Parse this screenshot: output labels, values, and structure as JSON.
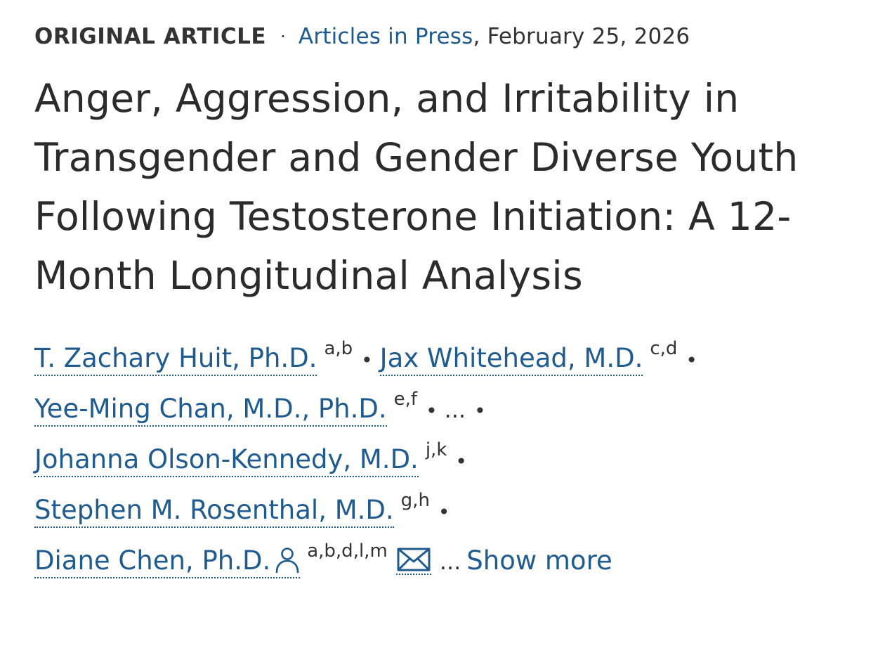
{
  "meta": {
    "article_type": "ORIGINAL ARTICLE",
    "separator": "·",
    "section_link": "Articles in Press",
    "date": ", February 25, 2026"
  },
  "title": "Anger, Aggression, and Irritability in Transgender and Gender Diverse Youth Following Testosterone Initiation: A 12-Month Longitudinal Analysis",
  "authors": {
    "separator": "•",
    "ellipsis": "...",
    "list": [
      {
        "name": "T. Zachary Huit, Ph.D.",
        "affiliations": "a,b"
      },
      {
        "name": "Jax Whitehead, M.D.",
        "affiliations": "c,d"
      },
      {
        "name": "Yee-Ming Chan, M.D., Ph.D.",
        "affiliations": "e,f"
      },
      {
        "name": "Johanna Olson-Kennedy, M.D.",
        "affiliations": "j,k"
      },
      {
        "name": "Stephen M. Rosenthal, M.D.",
        "affiliations": "g,h"
      },
      {
        "name": "Diane Chen, Ph.D.",
        "affiliations": "a,b,d,l,m"
      }
    ],
    "show_more_ellipsis": "...",
    "show_more_label": "Show more"
  },
  "icons": {
    "corresponding_author": "person-icon",
    "email": "mail-icon"
  },
  "colors": {
    "link": "#1f5b8f",
    "text": "#2b2b2b"
  }
}
